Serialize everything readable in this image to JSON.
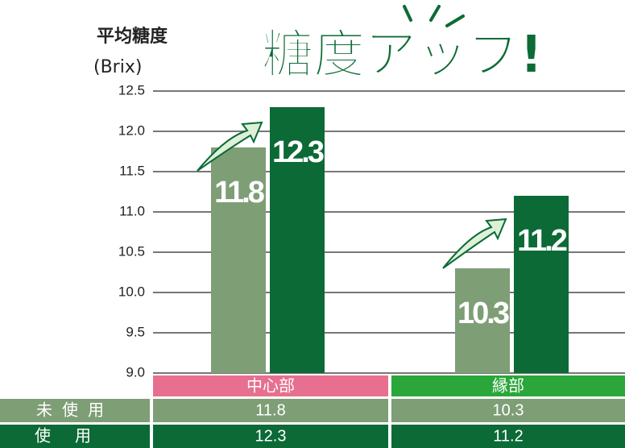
{
  "chart_data": {
    "type": "bar",
    "y_label": "平均糖度",
    "y_unit": "(Brix)",
    "annotation": "糖度アップ!",
    "categories": [
      "中心部",
      "縁部"
    ],
    "category_colors": [
      "#e76f8f",
      "#2aa63b"
    ],
    "series": [
      {
        "name": "未使用",
        "color": "#7e9e76",
        "values": [
          11.8,
          10.3
        ]
      },
      {
        "name": "使用",
        "color": "#0b6a36",
        "values": [
          12.3,
          11.2
        ]
      }
    ],
    "ylim": [
      9,
      12.5
    ],
    "yticks": [
      {
        "value": 9,
        "label": "9.0"
      },
      9.5,
      {
        "value": 10,
        "label": "10.0"
      },
      10.5,
      {
        "value": 11,
        "label": "11.0"
      },
      11.5,
      {
        "value": 12,
        "label": "12.0"
      },
      12.5
    ],
    "grid": true
  }
}
